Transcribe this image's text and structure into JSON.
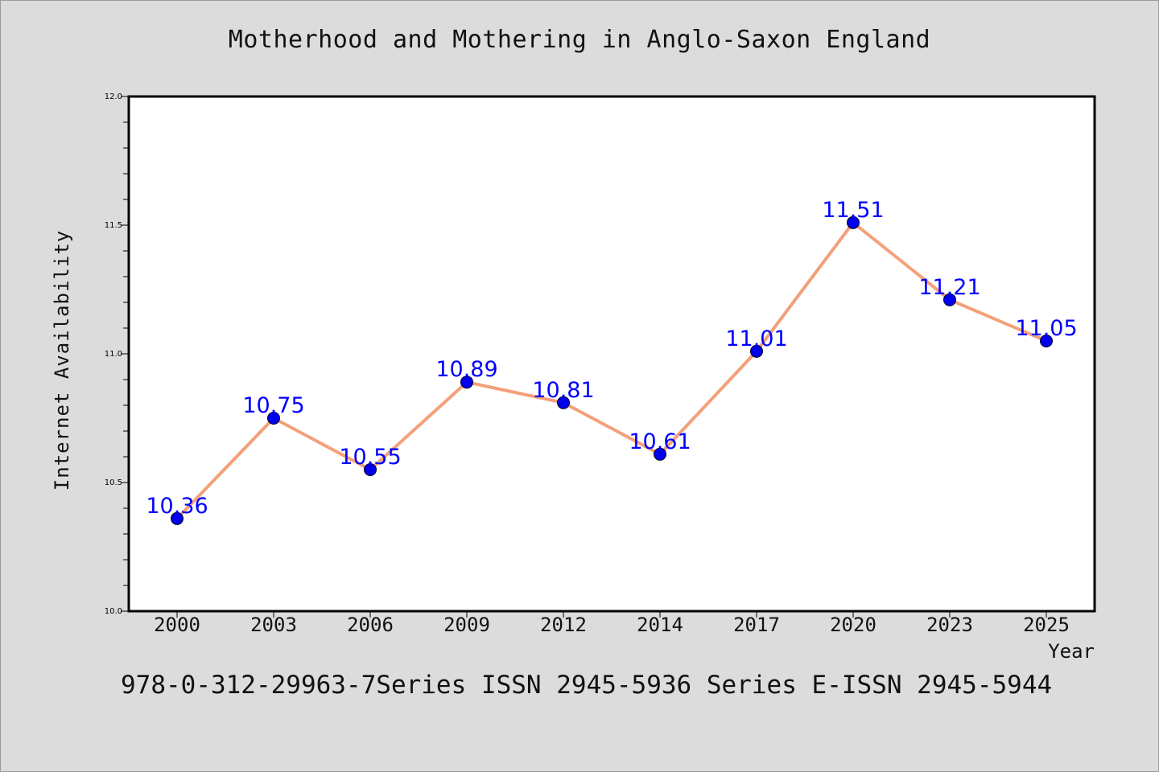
{
  "chart_data": {
    "type": "line",
    "title": "Motherhood and Mothering in Anglo-Saxon England",
    "xlabel": "Year",
    "ylabel": "Internet Availability",
    "categories": [
      "2000",
      "2003",
      "2006",
      "2009",
      "2012",
      "2014",
      "2017",
      "2020",
      "2023",
      "2025"
    ],
    "values": [
      10.36,
      10.75,
      10.55,
      10.89,
      10.81,
      10.61,
      11.01,
      11.51,
      11.21,
      11.05
    ],
    "data_labels": [
      "10.36",
      "10.75",
      "10.55",
      "10.89",
      "10.81",
      "10.61",
      "11.01",
      "11.51",
      "11.21",
      "11.05"
    ],
    "ylim": [
      10.0,
      12.0
    ],
    "yticks": [
      "10.0",
      "10.5",
      "11.0",
      "11.5",
      "12.0"
    ],
    "grid": false,
    "legend": "none",
    "colors": {
      "line": "#f4a07a",
      "marker": "#0000ee",
      "label": "#0000ff"
    }
  },
  "footer": {
    "text": "978-0-312-29963-7Series ISSN 2945-5936 Series E-ISSN 2945-5944"
  }
}
